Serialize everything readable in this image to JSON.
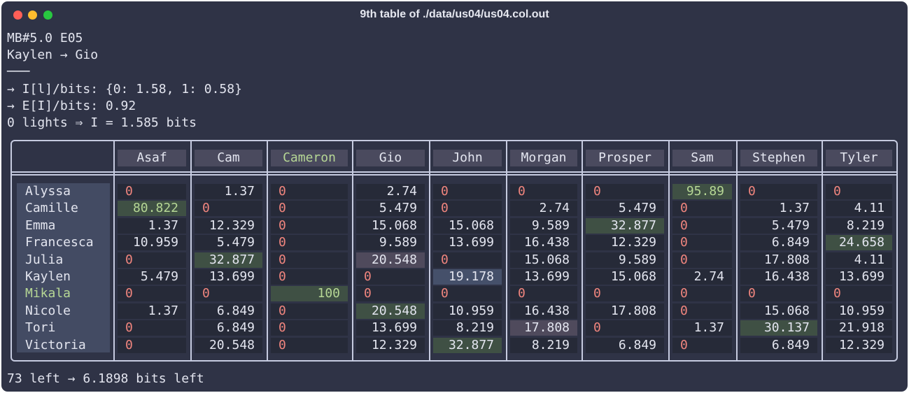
{
  "window": {
    "title": "9th table of ./data/us04/us04.col.out"
  },
  "header_lines": [
    "MB#5.0 E05",
    "Kaylen → Gio",
    "───",
    "→ I[l]/bits: {0: 1.58, 1: 0.58}",
    "→ E[I]/bits: 0.92",
    "0 lights ⇒ I = 1.585 bits"
  ],
  "footer": "73 left → 6.1898 bits left",
  "table": {
    "columns": [
      "Asaf",
      "Cam",
      "Cameron",
      "Gio",
      "John",
      "Morgan",
      "Prosper",
      "Sam",
      "Stephen",
      "Tyler"
    ],
    "highlight_column": "Cameron",
    "highlight_row": "Mikala",
    "rows": [
      {
        "name": "Alyssa",
        "cells": [
          "0",
          "1.37",
          "0",
          "2.74",
          "0",
          "0",
          "0",
          "95.89",
          "0",
          "0"
        ]
      },
      {
        "name": "Camille",
        "cells": [
          "80.822",
          "0",
          "0",
          "5.479",
          "0",
          "2.74",
          "5.479",
          "0",
          "1.37",
          "4.11"
        ]
      },
      {
        "name": "Emma",
        "cells": [
          "1.37",
          "12.329",
          "0",
          "15.068",
          "15.068",
          "9.589",
          "32.877",
          "0",
          "5.479",
          "8.219"
        ]
      },
      {
        "name": "Francesca",
        "cells": [
          "10.959",
          "5.479",
          "0",
          "9.589",
          "13.699",
          "16.438",
          "12.329",
          "0",
          "6.849",
          "24.658"
        ]
      },
      {
        "name": "Julia",
        "cells": [
          "0",
          "32.877",
          "0",
          "20.548",
          "0",
          "15.068",
          "9.589",
          "0",
          "17.808",
          "4.11"
        ]
      },
      {
        "name": "Kaylen",
        "cells": [
          "5.479",
          "13.699",
          "0",
          "0",
          "19.178",
          "13.699",
          "15.068",
          "2.74",
          "16.438",
          "13.699"
        ]
      },
      {
        "name": "Mikala",
        "cells": [
          "0",
          "0",
          "100",
          "0",
          "0",
          "0",
          "0",
          "0",
          "0",
          "0"
        ]
      },
      {
        "name": "Nicole",
        "cells": [
          "1.37",
          "6.849",
          "0",
          "20.548",
          "10.959",
          "16.438",
          "17.808",
          "0",
          "15.068",
          "10.959"
        ]
      },
      {
        "name": "Tori",
        "cells": [
          "0",
          "6.849",
          "0",
          "13.699",
          "8.219",
          "17.808",
          "0",
          "1.37",
          "30.137",
          "21.918"
        ]
      },
      {
        "name": "Victoria",
        "cells": [
          "0",
          "20.548",
          "0",
          "12.329",
          "32.877",
          "8.219",
          "6.849",
          "0",
          "6.849",
          "12.329"
        ]
      }
    ],
    "cell_highlights": {
      "green": [
        [
          0,
          7
        ],
        [
          1,
          0
        ],
        [
          2,
          6
        ],
        [
          3,
          9
        ],
        [
          4,
          1
        ],
        [
          6,
          2
        ],
        [
          7,
          3
        ],
        [
          8,
          8
        ],
        [
          9,
          4
        ]
      ],
      "bright_text": [
        [
          0,
          7
        ],
        [
          1,
          0
        ],
        [
          6,
          2
        ]
      ],
      "purple": [
        [
          4,
          3
        ],
        [
          8,
          5
        ]
      ],
      "blue": [
        [
          5,
          4
        ]
      ]
    }
  },
  "colors": {
    "background": "#2f3346",
    "text": "#e3e5ef",
    "zero": "#f0857e",
    "highlight_green_text": "#b6d795",
    "cell_green": "#3f5044",
    "cell_purple": "#4f4a5c",
    "cell_blue": "#45506a"
  }
}
